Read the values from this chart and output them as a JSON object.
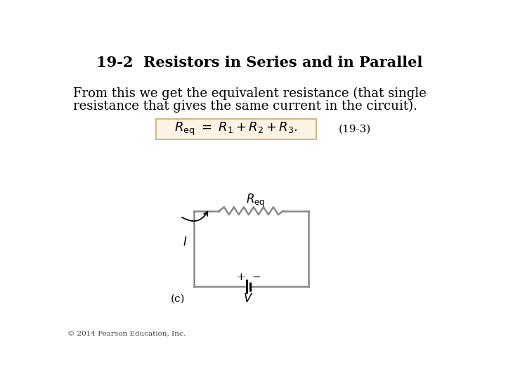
{
  "title": "19-2  Resistors in Series and in Parallel",
  "body_text_line1": "From this we get the equivalent resistance (that single",
  "body_text_line2": "resistance that gives the same current in the circuit).",
  "equation_label": "(19-3)",
  "equation_box_color": "#fdf3e3",
  "equation_box_edge": "#c8a96e",
  "circuit_label_c": "(c)",
  "circuit_label_I": "$I$",
  "circuit_label_V": "$V$",
  "circuit_label_plus": "+",
  "circuit_label_minus": "−",
  "circuit_label_Req": "$R_{\\mathrm{eq}}$",
  "copyright": "© 2014 Pearson Education, Inc.",
  "background_color": "#ffffff",
  "title_fontsize": 15,
  "body_fontsize": 13,
  "eq_fontsize": 13,
  "circuit_color": "#888888",
  "circuit_lw": 1.8
}
